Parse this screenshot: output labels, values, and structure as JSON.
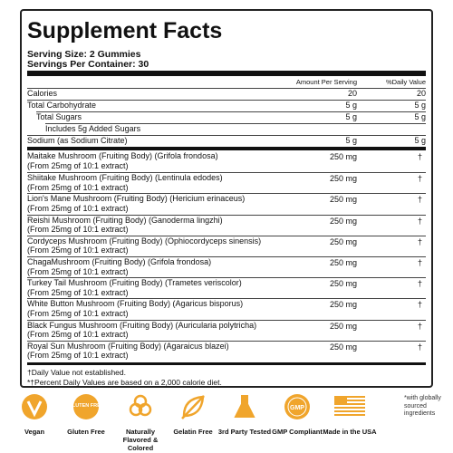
{
  "title": "Supplement Facts",
  "serving_size": "Serving Size: 2 Gummies",
  "servings_per_container": "Servings Per Container: 30",
  "columns": {
    "amount": "Amount Per Serving",
    "daily_value": "%Daily Value"
  },
  "nutrients": [
    {
      "name": "Calories",
      "amount": "20",
      "daily_value": "20",
      "indent": 0
    },
    {
      "name": "Total Carbohydrate",
      "amount": "5 g",
      "daily_value": "5 g",
      "indent": 0
    },
    {
      "name": "Total Sugars",
      "amount": "5 g",
      "daily_value": "5 g",
      "indent": 1
    },
    {
      "name": "Includes 5g Added Sugars",
      "indent": 2
    },
    {
      "name": "Sodium (as Sodium Citrate)",
      "amount": "5 g",
      "daily_value": "5 g",
      "indent": 0
    }
  ],
  "ingredients": [
    {
      "name": "Maitake Mushroom (Fruiting Body) (Grifola frondosa)",
      "note": "(From 25mg of 10:1 extract)",
      "amount": "250 mg",
      "daily_value": "†"
    },
    {
      "name": "Shiitake Mushroom (Fruiting Body) (Lentinula edodes)",
      "note": "(From 25mg of 10:1 extract)",
      "amount": "250 mg",
      "daily_value": "†"
    },
    {
      "name": "Lion's Mane Mushroom (Fruiting Body) (Hericium erinaceus)",
      "note": "(From 25mg of 10:1 extract)",
      "amount": "250 mg",
      "daily_value": "†"
    },
    {
      "name": "Reishi Mushroom (Fruiting Body) (Ganoderma lingzhi)",
      "note": "(From 25mg of 10:1 extract)",
      "amount": "250 mg",
      "daily_value": "†"
    },
    {
      "name": "Cordyceps Mushroom (Fruiting Body) (Ophiocordyceps sinensis)",
      "note": "(From 25mg of 10:1 extract)",
      "amount": "250 mg",
      "daily_value": "†"
    },
    {
      "name": "ChagaMushroom (Fruiting Body) (Grifola frondosa)",
      "note": "(From 25mg of 10:1 extract)",
      "amount": "250 mg",
      "daily_value": "†"
    },
    {
      "name": "Turkey Tail Mushroom (Fruiting Body) (Trametes veriscolor)",
      "note": "(From 25mg of 10:1 extract)",
      "amount": "250 mg",
      "daily_value": "†"
    },
    {
      "name": "White Button Mushroom (Fruiting Body) (Agaricus bisporus)",
      "note": "(From 25mg of 10:1 extract)",
      "amount": "250 mg",
      "daily_value": "†"
    },
    {
      "name": "Black Fungus Mushroom (Fruiting Body) (Auricularia polytricha)",
      "note": "(From 25mg of 10:1 extract)",
      "amount": "250 mg",
      "daily_value": "†"
    },
    {
      "name": "Royal Sun Mushroom (Fruiting Body) (Agaraicus blazei)",
      "note": "(From 25mg of 10:1 extract)",
      "amount": "250 mg",
      "daily_value": "†"
    }
  ],
  "footnotes": [
    "†Daily Value not established.",
    "*†Percent Daily Values are based on a 2,000 calorie diet."
  ],
  "badges": [
    {
      "label": "Vegan"
    },
    {
      "label": "Gluten Free",
      "icon_text": "GLUTEN FREE"
    },
    {
      "label": "Naturally Flavored & Colored"
    },
    {
      "label": "Gelatin Free"
    },
    {
      "label": "3rd Party Tested"
    },
    {
      "label": "GMP Compliant",
      "icon_text": "GMP"
    },
    {
      "label": "Made in the USA"
    }
  ],
  "badge_note": "*with globally sourced ingredients"
}
